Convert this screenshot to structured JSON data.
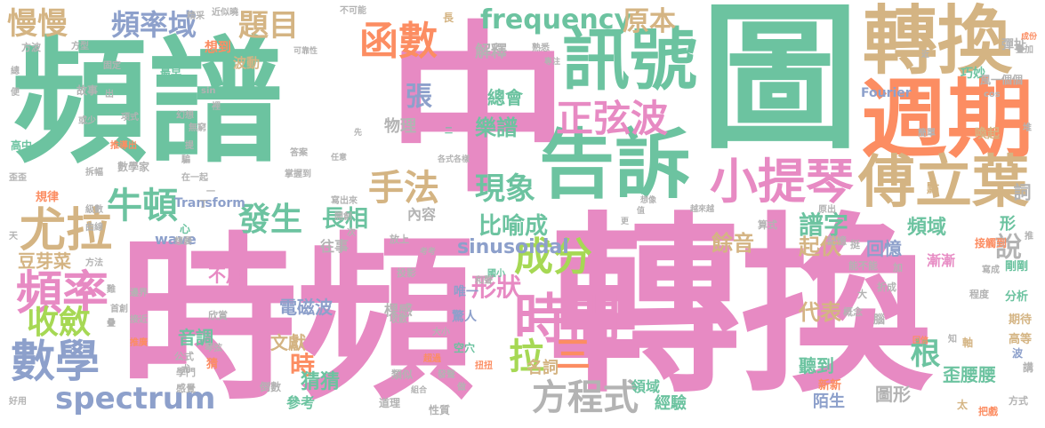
{
  "palette": {
    "teal": "#6cc3a0",
    "pink": "#e78ac3",
    "tan": "#d4b483",
    "blue": "#8da0cb",
    "green": "#a6d854",
    "gray": "#b3b3b3",
    "orange": "#fc8d62",
    "yellow": "#ffd92f"
  },
  "words": [
    "中",
    "頻譜",
    "圖",
    "時頻",
    "轉換",
    "週期",
    "訊號",
    "告訴",
    "轉換",
    "傅立葉",
    "小提琴",
    "正弦波",
    "函數",
    "頻率域",
    "慢慢",
    "題目",
    "frequency",
    "原本",
    "尤拉",
    "牛頓",
    "頻率",
    "收斂",
    "數學",
    "spectrum",
    "發生",
    "長相",
    "手法",
    "現象",
    "成分",
    "時間",
    "形狀",
    "方程式",
    "拉",
    "三",
    "根",
    "說",
    "時",
    "猜猜",
    "張",
    "樂譜",
    "總會",
    "sinusoidal",
    "電磁波",
    "比喻成",
    "餘音",
    "譜字",
    "頻域",
    "起伏",
    "回憶",
    "代表",
    "聽到",
    "歪腰腰",
    "圖形",
    "文獻",
    "音調",
    "形",
    "名詞",
    "物理",
    "解釋",
    "想到",
    "波動",
    "經驗",
    "領域",
    "陌生",
    "新新",
    "豆芽菜",
    "內容",
    "不用",
    "往事",
    "棵感",
    "驚人",
    "唯一",
    "Fourier",
    "wave",
    "Transform",
    "彈扯",
    "巧妙",
    "風一個個",
    "參考",
    "猜",
    "詞",
    "接觸到",
    "漸漸",
    "剛剛",
    "分析",
    "期待",
    "高等",
    "講",
    "波",
    "軸",
    "方式",
    "把戲",
    "太",
    "數學家",
    "規律",
    "高中",
    "故事",
    "最早",
    "方波",
    "固定",
    "精采",
    "近似",
    "不可能",
    "長",
    "熟悉",
    "成份",
    "疊加",
    "近",
    "簡單",
    "喚起",
    "點",
    "堆",
    "推",
    "類似",
    "道理",
    "性質",
    "組合",
    "做",
    "倒數",
    "感覺",
    "學門",
    "公式",
    "琴弦",
    "推廣",
    "接近",
    "首創",
    "邊界",
    "欣賞",
    "收斂",
    "空穴",
    "大小",
    "投影",
    "放上",
    "考考",
    "次",
    "國小",
    "和聲",
    "超過",
    "發聲",
    "扭扭",
    "能不能",
    "大",
    "腦",
    "原出",
    "記憶",
    "算式",
    "挺",
    "概念",
    "加",
    "折成",
    "回信",
    "程度",
    "更",
    "想像",
    "值",
    "越來越",
    "任意",
    "各式各樣",
    "二",
    "先",
    "提",
    "騙",
    "在一起",
    "無窮",
    "幻想",
    "項式",
    "推導出",
    "或少",
    "出",
    "sin",
    "cos",
    "可靠性",
    "專注",
    "寫出來",
    "開創",
    "掌握到",
    "答案",
    "拆幅",
    "歪歪",
    "曲線",
    "級數",
    "方法",
    "天",
    "好用",
    "疊",
    "難",
    "心",
    "想要",
    "便",
    "總",
    "方型",
    "裡",
    "曉",
    "寫成",
    "知",
    "一",
    "丁",
    "尤"
  ]
}
